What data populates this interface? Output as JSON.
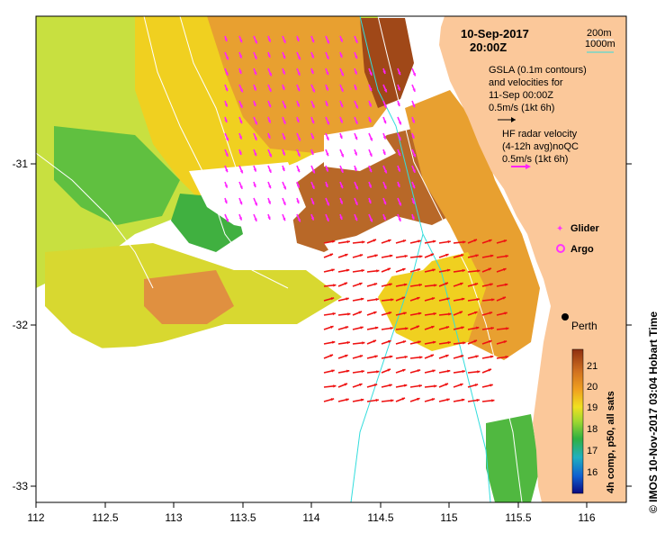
{
  "title": {
    "date": "10-Sep-2017",
    "time": "20:00Z"
  },
  "bathymetry_legend": {
    "items": [
      "200m",
      "1000m"
    ],
    "color_200": "#ffffff",
    "color_1000": "#33dddd"
  },
  "gsla_text": [
    "GSLA (0.1m contours)",
    "and velocities for",
    "11-Sep 00:00Z",
    "0.5m/s (1kt 6h)"
  ],
  "hf_text": [
    "HF radar velocity",
    "(4-12h avg)noQC",
    "0.5m/s (1kt 6h)"
  ],
  "markers": {
    "glider": "Glider",
    "argo": "Argo"
  },
  "city": "Perth",
  "credit": "© IMOS 10-Nov-2017 03:04 Hobart Time",
  "colorbar": {
    "label": "4h comp, p50, all sats",
    "ticks": [
      "21",
      "20",
      "19",
      "18",
      "17",
      "16"
    ]
  },
  "axes": {
    "x_ticks": [
      "112",
      "112.5",
      "113",
      "113.5",
      "114",
      "114.5",
      "115",
      "115.5",
      "116"
    ],
    "y_ticks": [
      "-31",
      "-32",
      "-33"
    ]
  },
  "colors": {
    "land": "#fbc89a",
    "glider": "#ff33ff",
    "argo": "#ff33ff",
    "gsla_arrow": "#000000",
    "hf_arrow": "#ff22ff",
    "current_arrow": "#ee1111"
  }
}
